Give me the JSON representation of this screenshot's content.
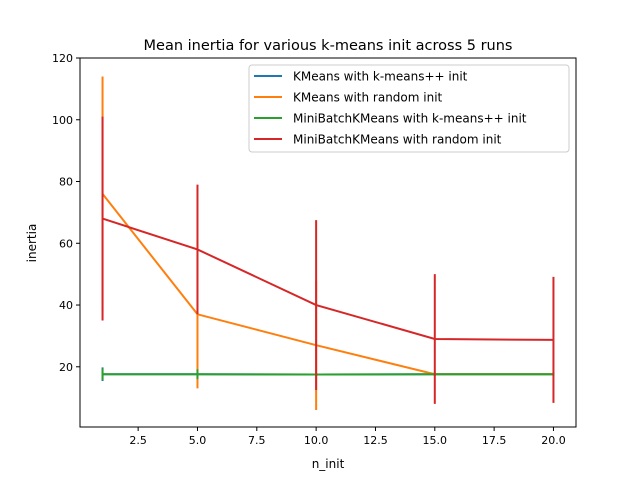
{
  "chart_data": {
    "type": "line",
    "title": "Mean inertia for various k-means init across 5 runs",
    "xlabel": "n_init",
    "ylabel": "inertia",
    "xlim": [
      0.05,
      20.95
    ],
    "ylim": [
      0.5,
      120
    ],
    "xticks": [
      2.5,
      5.0,
      7.5,
      10.0,
      12.5,
      15.0,
      17.5,
      20.0
    ],
    "xtick_labels": [
      "2.5",
      "5.0",
      "7.5",
      "10.0",
      "12.5",
      "15.0",
      "17.5",
      "20.0"
    ],
    "yticks": [
      20,
      40,
      60,
      80,
      100,
      120
    ],
    "ytick_labels": [
      "20",
      "40",
      "60",
      "80",
      "100",
      "120"
    ],
    "x": [
      1,
      5,
      10,
      15,
      20
    ],
    "legend_position": "top-right",
    "series": [
      {
        "name": "KMeans with k-means++ init",
        "color": "#1f77b4",
        "values": [
          17.6,
          17.6,
          17.5,
          17.6,
          17.6
        ],
        "errors": [
          2.2,
          1.5,
          0.5,
          0.5,
          0.5
        ]
      },
      {
        "name": "KMeans with random init",
        "color": "#ff7f0e",
        "values": [
          76,
          37,
          27,
          17.6,
          17.6
        ],
        "errors": [
          38,
          24,
          21,
          0.5,
          0.5
        ]
      },
      {
        "name": "MiniBatchKMeans with k-means++ init",
        "color": "#2ca02c",
        "values": [
          17.6,
          17.6,
          17.5,
          17.6,
          17.6
        ],
        "errors": [
          1.9,
          1.6,
          0.5,
          0.5,
          0.5
        ]
      },
      {
        "name": "MiniBatchKMeans with random init",
        "color": "#d62728",
        "values": [
          68,
          58,
          40,
          29,
          28.7
        ],
        "errors": [
          33,
          21,
          27.5,
          21,
          20.4
        ]
      }
    ]
  }
}
